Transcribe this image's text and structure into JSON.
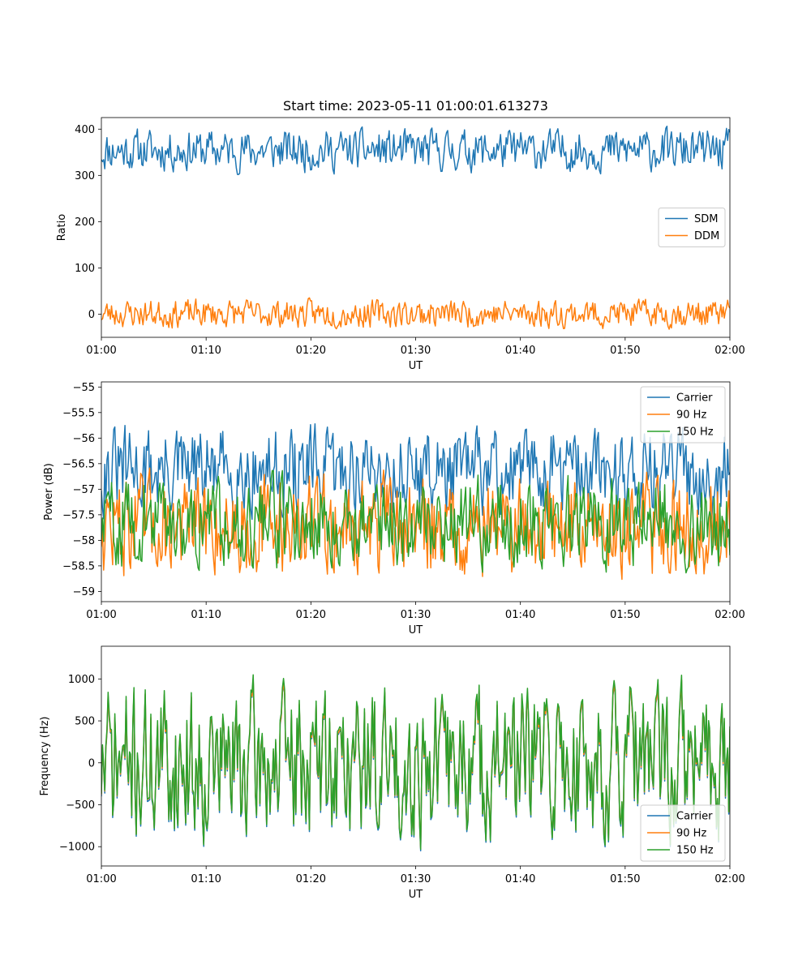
{
  "figure": {
    "title": "Start time: 2023-05-11 01:00:01.613273"
  },
  "colors": {
    "blue": "#1f77b4",
    "orange": "#ff7f0e",
    "green": "#2ca02c"
  },
  "chart_data": [
    {
      "type": "line",
      "title": "Start time: 2023-05-11 01:00:01.613273",
      "xlabel": "UT",
      "ylabel": "Ratio",
      "xlim": [
        "01:00",
        "02:00"
      ],
      "xticks": [
        "01:00",
        "01:10",
        "01:20",
        "01:30",
        "01:40",
        "01:50",
        "02:00"
      ],
      "ylim": [
        -50,
        425
      ],
      "yticks": [
        0,
        100,
        200,
        300,
        400
      ],
      "legend": "center-right",
      "series": [
        {
          "name": "SDM",
          "color": "#1f77b4",
          "mean": 355,
          "amplitude": 24,
          "seed": 11
        },
        {
          "name": "DDM",
          "color": "#ff7f0e",
          "mean": 0,
          "amplitude": 16,
          "seed": 23
        }
      ]
    },
    {
      "type": "line",
      "title": "",
      "xlabel": "UT",
      "ylabel": "Power (dB)",
      "xlim": [
        "01:00",
        "02:00"
      ],
      "xticks": [
        "01:00",
        "01:10",
        "01:20",
        "01:30",
        "01:40",
        "01:50",
        "02:00"
      ],
      "ylim": [
        -59.2,
        -54.9
      ],
      "yticks": [
        -55.0,
        -55.5,
        -56.0,
        -56.5,
        -57.0,
        -57.5,
        -58.0,
        -58.5,
        -59.0
      ],
      "legend": "upper-right",
      "series": [
        {
          "name": "Carrier",
          "color": "#1f77b4",
          "mean": -56.65,
          "amplitude": 0.45,
          "seed": 31
        },
        {
          "name": "90 Hz",
          "color": "#ff7f0e",
          "mean": -57.75,
          "amplitude": 0.5,
          "seed": 47
        },
        {
          "name": "150 Hz",
          "color": "#2ca02c",
          "mean": -57.7,
          "amplitude": 0.45,
          "seed": 59
        }
      ]
    },
    {
      "type": "line",
      "title": "",
      "xlabel": "UT",
      "ylabel": "Frequency (Hz)",
      "xlim": [
        "01:00",
        "02:00"
      ],
      "xticks": [
        "01:00",
        "01:10",
        "01:20",
        "01:30",
        "01:40",
        "01:50",
        "02:00"
      ],
      "ylim": [
        -1230,
        1390
      ],
      "yticks": [
        1000,
        500,
        0,
        -500,
        -1000
      ],
      "legend": "lower-right",
      "series": [
        {
          "name": "Carrier",
          "color": "#1f77b4",
          "mean": -20,
          "amplitude": 470,
          "seed": 71
        },
        {
          "name": "90 Hz",
          "color": "#ff7f0e",
          "mean": 0,
          "amplitude": 465,
          "seed": 71
        },
        {
          "name": "150 Hz",
          "color": "#2ca02c",
          "mean": 20,
          "amplitude": 480,
          "seed": 71
        }
      ]
    }
  ]
}
